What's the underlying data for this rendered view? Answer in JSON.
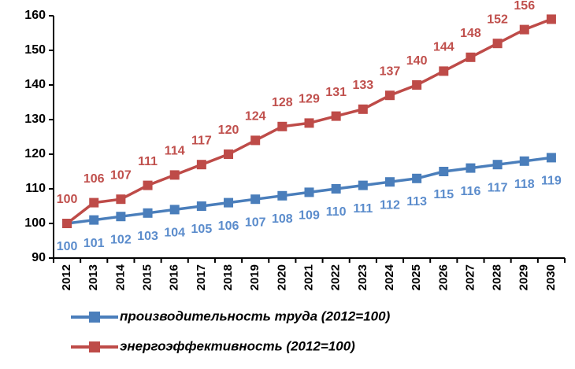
{
  "chart_data": {
    "type": "line",
    "categories": [
      "2012",
      "2013",
      "2014",
      "2015",
      "2016",
      "2017",
      "2018",
      "2019",
      "2020",
      "2021",
      "2022",
      "2023",
      "2024",
      "2025",
      "2026",
      "2027",
      "2028",
      "2029",
      "2030"
    ],
    "series": [
      {
        "name": "производительность труда (2012=100)",
        "color": "#4a7ebb",
        "values": [
          100,
          101,
          102,
          103,
          104,
          105,
          106,
          107,
          108,
          109,
          110,
          111,
          112,
          113,
          115,
          116,
          117,
          118,
          119
        ]
      },
      {
        "name": "энергоэффективность (2012=100)",
        "color": "#be4b48",
        "values": [
          100,
          106,
          107,
          111,
          114,
          117,
          120,
          124,
          128,
          129,
          131,
          133,
          137,
          140,
          144,
          148,
          152,
          156,
          159
        ]
      }
    ],
    "ylim": [
      90,
      160
    ],
    "yticks": [
      90,
      100,
      110,
      120,
      130,
      140,
      150,
      160
    ],
    "legend": "bottom"
  }
}
